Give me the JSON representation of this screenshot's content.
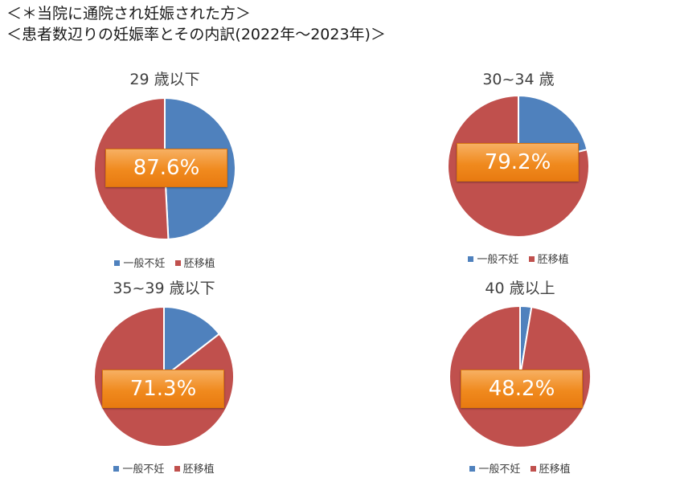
{
  "heading": {
    "line1": "＜＊当院に通院され妊娠された方＞",
    "line2": "＜患者数辺りの妊娠率とその内訳(2022年〜2023年)＞"
  },
  "colors": {
    "general": "#4f81bd",
    "transfer": "#c0504d",
    "rate_box": "#f08a1e"
  },
  "legend": {
    "general": "一般不妊",
    "transfer": "胚移植"
  },
  "chart_data": [
    {
      "type": "pie",
      "title": "29 歳以下",
      "rate_label": "87.6%",
      "slices": [
        {
          "name": "一般不妊",
          "value": 49.2
        },
        {
          "name": "胚移植",
          "value": 50.8
        }
      ]
    },
    {
      "type": "pie",
      "title": "30~34 歳",
      "rate_label": "79.2%",
      "slices": [
        {
          "name": "一般不妊",
          "value": 21.2
        },
        {
          "name": "胚移植",
          "value": 78.8
        }
      ]
    },
    {
      "type": "pie",
      "title": "35~39 歳以下",
      "rate_label": "71.3%",
      "slices": [
        {
          "name": "一般不妊",
          "value": 14.5
        },
        {
          "name": "胚移植",
          "value": 85.5
        }
      ]
    },
    {
      "type": "pie",
      "title": "40 歳以上",
      "rate_label": "48.2%",
      "slices": [
        {
          "name": "一般不妊",
          "value": 2.6
        },
        {
          "name": "胚移植",
          "value": 97.4
        }
      ]
    }
  ]
}
